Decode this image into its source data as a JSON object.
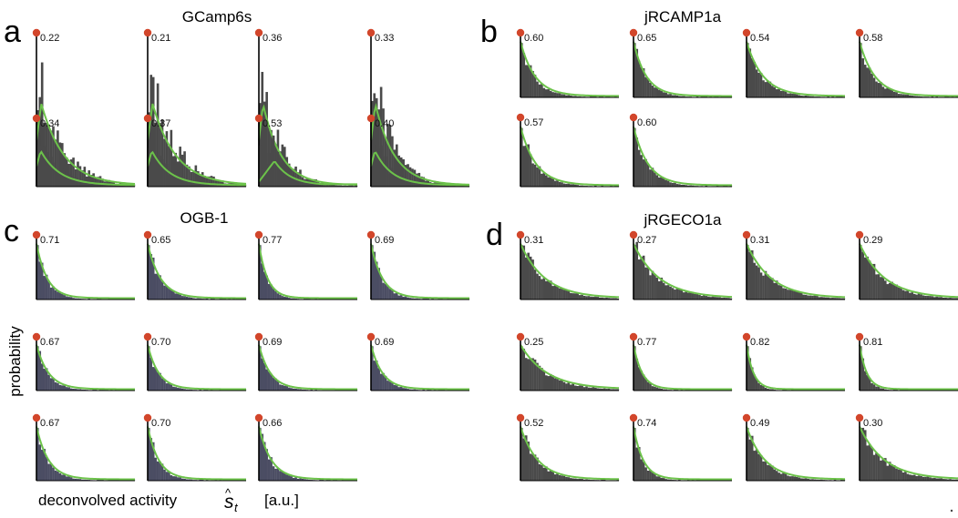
{
  "colors": {
    "bar_fill": "#4a4a4a",
    "bar_fill_ogb": "#4b4d63",
    "fit_curve": "#6cc24a",
    "axis": "#000000",
    "top_dot": "#d2462b"
  },
  "axes_labels": {
    "ylabel": "probability",
    "xlabel_text": "deconvolved activity",
    "xlabel_unit": "[a.u.]"
  },
  "chart_data": [
    {
      "type": "bar",
      "panel_letter": "a",
      "title": "GCamp6s",
      "shape": "peaked-decay",
      "subplot_values": [
        "0.22",
        "0.21",
        "0.36",
        "0.33",
        "0.34",
        "0.37",
        "0.53",
        "0.40"
      ]
    },
    {
      "type": "bar",
      "panel_letter": "b",
      "title": "jRCAMP1a",
      "shape": "decay",
      "subplot_values": [
        "0.60",
        "0.65",
        "0.54",
        "0.58",
        "0.57",
        "0.60"
      ]
    },
    {
      "type": "bar",
      "panel_letter": "c",
      "title": "OGB-1",
      "shape": "decay",
      "subplot_values": [
        "0.71",
        "0.65",
        "0.77",
        "0.69",
        "0.67",
        "0.70",
        "0.69",
        "0.69",
        "0.67",
        "0.70",
        "0.66"
      ]
    },
    {
      "type": "bar",
      "panel_letter": "d",
      "title": "jRGECO1a",
      "shape": "decay",
      "subplot_values": [
        "0.31",
        "0.27",
        "0.31",
        "0.29",
        "0.25",
        "0.77",
        "0.82",
        "0.81",
        "0.52",
        "0.74",
        "0.49",
        "0.30"
      ]
    }
  ]
}
